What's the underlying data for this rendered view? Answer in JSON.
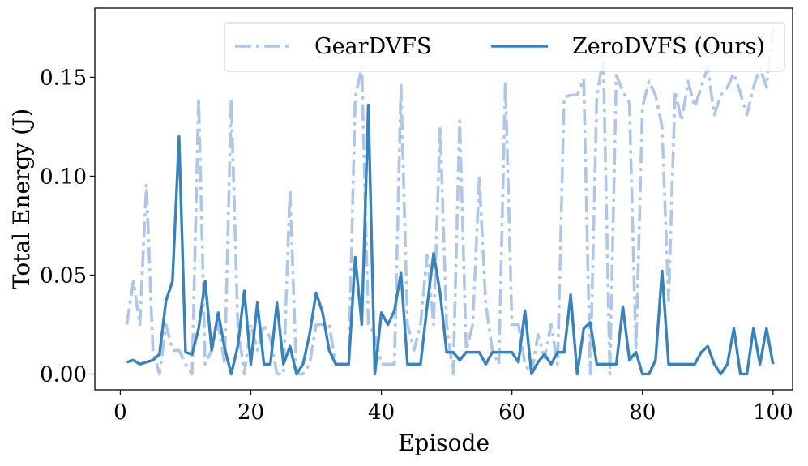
{
  "chart_data": {
    "type": "line",
    "title": "",
    "xlabel": "Episode",
    "ylabel": "Total Energy (J)",
    "xlim": [
      -3.9,
      103
    ],
    "ylim": [
      -0.008,
      0.185
    ],
    "xticks": [
      0,
      20,
      40,
      60,
      80,
      100
    ],
    "yticks": [
      0.0,
      0.05,
      0.1,
      0.15
    ],
    "xtick_labels": [
      "0",
      "20",
      "40",
      "60",
      "80",
      "100"
    ],
    "ytick_labels": [
      "0.00",
      "0.05",
      "0.10",
      "0.15"
    ],
    "grid": false,
    "legend": {
      "placement": "top-right",
      "columns": 2
    },
    "series": [
      {
        "name": "GearDVFS",
        "color": "#aec7e8",
        "style": "dashdot",
        "x": [
          1,
          2,
          3,
          4,
          5,
          6,
          7,
          8,
          9,
          10,
          11,
          12,
          13,
          14,
          15,
          16,
          17,
          18,
          19,
          20,
          21,
          22,
          23,
          24,
          25,
          26,
          27,
          28,
          29,
          30,
          31,
          32,
          33,
          34,
          35,
          36,
          37,
          38,
          39,
          40,
          41,
          42,
          43,
          44,
          45,
          46,
          47,
          48,
          49,
          50,
          51,
          52,
          53,
          54,
          55,
          56,
          57,
          58,
          59,
          60,
          61,
          62,
          63,
          64,
          65,
          66,
          67,
          68,
          69,
          70,
          71,
          72,
          73,
          74,
          75,
          76,
          77,
          78,
          79,
          80,
          81,
          82,
          83,
          84,
          85,
          86,
          87,
          88,
          89,
          90,
          91,
          92,
          93,
          94,
          95,
          96,
          97,
          98,
          99,
          100
        ],
        "values": [
          0.025,
          0.047,
          0.025,
          0.096,
          0.012,
          0.0,
          0.025,
          0.012,
          0.012,
          0.005,
          0.0,
          0.14,
          0.005,
          0.012,
          0.025,
          0.005,
          0.139,
          0.025,
          0.0,
          0.025,
          0.012,
          0.025,
          0.018,
          0.0,
          0.0,
          0.093,
          0.0,
          0.0,
          0.005,
          0.025,
          0.025,
          0.025,
          0.005,
          0.005,
          0.005,
          0.14,
          0.155,
          0.025,
          0.02,
          0.005,
          0.005,
          0.005,
          0.146,
          0.025,
          0.012,
          0.025,
          0.06,
          0.025,
          0.125,
          0.025,
          0.0,
          0.128,
          0.012,
          0.025,
          0.099,
          0.035,
          0.012,
          0.005,
          0.148,
          0.025,
          0.025,
          0.005,
          0.0,
          0.02,
          0.008,
          0.025,
          0.005,
          0.14,
          0.141,
          0.141,
          0.149,
          0.0,
          0.14,
          0.16,
          0.0,
          0.151,
          0.143,
          0.137,
          0.012,
          0.135,
          0.148,
          0.141,
          0.125,
          0.037,
          0.143,
          0.128,
          0.148,
          0.135,
          0.145,
          0.155,
          0.131,
          0.141,
          0.145,
          0.152,
          0.142,
          0.131,
          0.145,
          0.155,
          0.145,
          0.175
        ]
      },
      {
        "name": "ZeroDVFS (Ours)",
        "color": "#3a82bb",
        "style": "solid",
        "x": [
          1,
          2,
          3,
          4,
          5,
          6,
          7,
          8,
          9,
          10,
          11,
          12,
          13,
          14,
          15,
          16,
          17,
          18,
          19,
          20,
          21,
          22,
          23,
          24,
          25,
          26,
          27,
          28,
          29,
          30,
          31,
          32,
          33,
          34,
          35,
          36,
          37,
          38,
          39,
          40,
          41,
          42,
          43,
          44,
          45,
          46,
          47,
          48,
          49,
          50,
          51,
          52,
          53,
          54,
          55,
          56,
          57,
          58,
          59,
          60,
          61,
          62,
          63,
          64,
          65,
          66,
          67,
          68,
          69,
          70,
          71,
          72,
          73,
          74,
          75,
          76,
          77,
          78,
          79,
          80,
          81,
          82,
          83,
          84,
          85,
          86,
          87,
          88,
          89,
          90,
          91,
          92,
          93,
          94,
          95,
          96,
          97,
          98,
          99,
          100
        ],
        "values": [
          0.006,
          0.007,
          0.005,
          0.006,
          0.007,
          0.01,
          0.037,
          0.047,
          0.12,
          0.011,
          0.01,
          0.023,
          0.047,
          0.012,
          0.031,
          0.013,
          0.0,
          0.014,
          0.042,
          0.005,
          0.036,
          0.005,
          0.005,
          0.036,
          0.005,
          0.014,
          0.0,
          0.005,
          0.02,
          0.041,
          0.031,
          0.012,
          0.005,
          0.005,
          0.005,
          0.059,
          0.025,
          0.136,
          0.0,
          0.031,
          0.025,
          0.032,
          0.051,
          0.005,
          0.005,
          0.005,
          0.034,
          0.061,
          0.041,
          0.011,
          0.011,
          0.007,
          0.011,
          0.011,
          0.011,
          0.005,
          0.011,
          0.011,
          0.011,
          0.011,
          0.006,
          0.032,
          0.0,
          0.006,
          0.01,
          0.005,
          0.011,
          0.011,
          0.04,
          0.0,
          0.023,
          0.026,
          0.005,
          0.005,
          0.005,
          0.005,
          0.034,
          0.007,
          0.011,
          0.0,
          0.0,
          0.007,
          0.052,
          0.005,
          0.005,
          0.005,
          0.005,
          0.005,
          0.011,
          0.014,
          0.005,
          0.0,
          0.005,
          0.023,
          0.0,
          0.0,
          0.023,
          0.005,
          0.023,
          0.005
        ]
      }
    ]
  }
}
